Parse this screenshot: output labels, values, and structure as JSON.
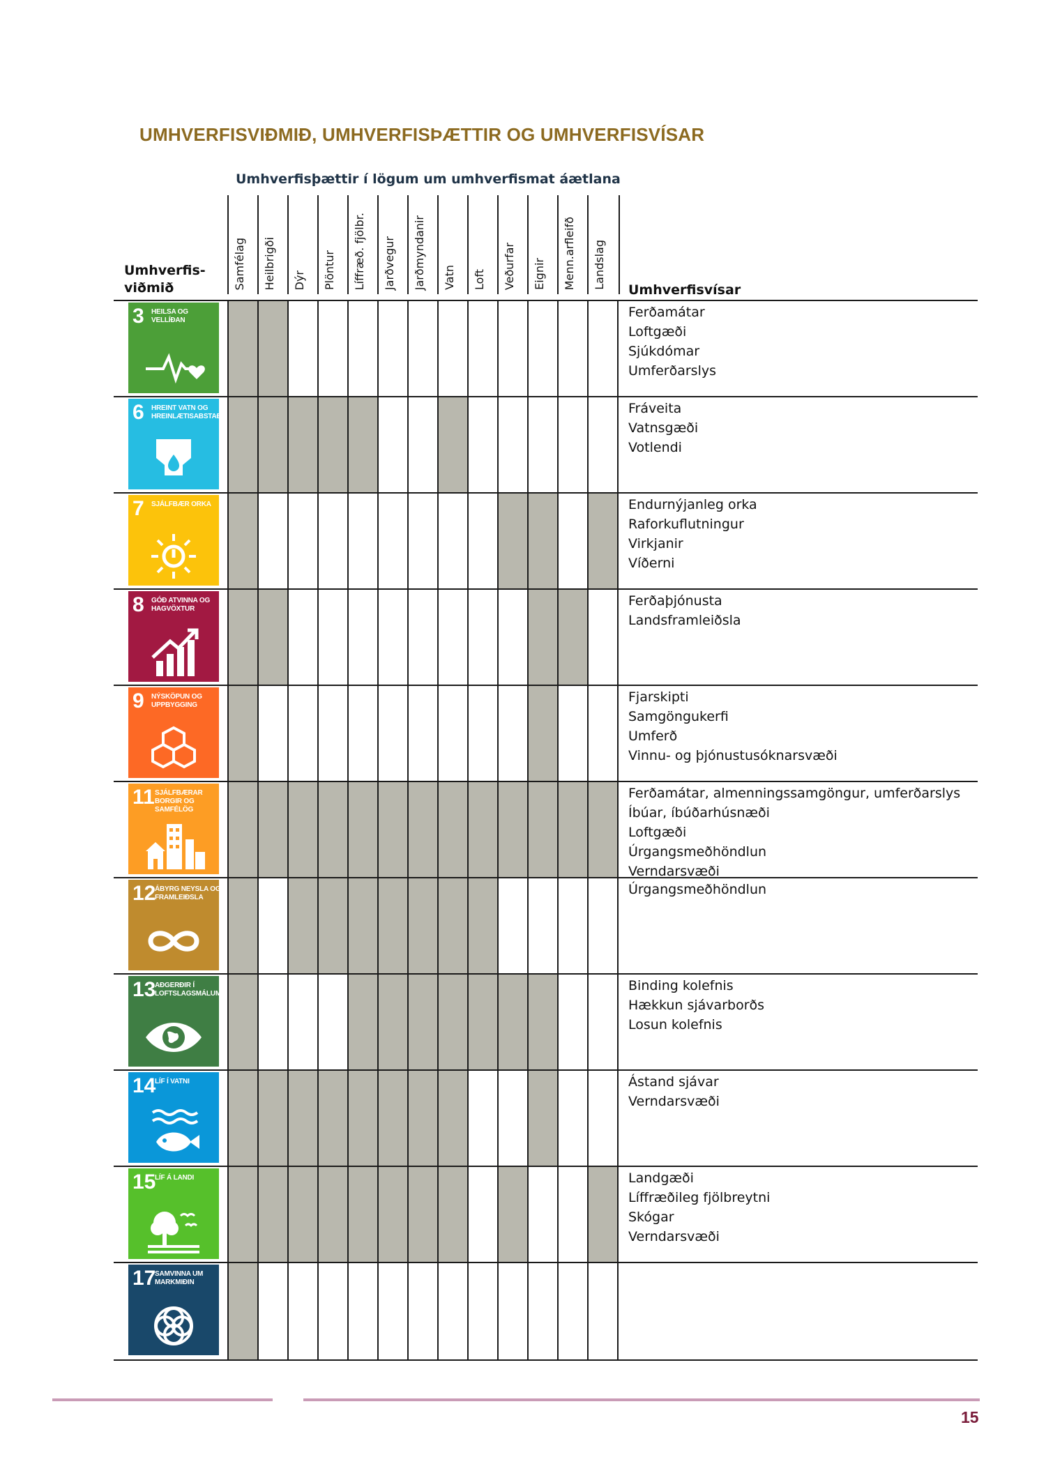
{
  "title": "UMHVERFISVIÐMIÐ, UMHVERFISÞÆTTIR OG UMHVERFISVÍSAR",
  "subtitle": "Umhverfisþættir í lögum um umhverfismat áætlana",
  "sdg_header": "Umhverfis-viðmið",
  "indicator_header": "Umhverfisvísar",
  "columns": [
    "Samfélag",
    "Heilbrigði",
    "Dýr",
    "Plöntur",
    "Líffræð. fjölbr.",
    "Jarðvegur",
    "Jarðmyndanir",
    "Vatn",
    "Loft",
    "Veðurfar",
    "Eignir",
    "Menn.arfleifð",
    "Landslag"
  ],
  "rows": [
    {
      "sdg_number": "3",
      "sdg_label": "HEILSA OG VELLÍÐAN",
      "icon": "heartbeat-icon",
      "color": "#4c9f38",
      "filled": [
        1,
        1,
        0,
        0,
        0,
        0,
        0,
        0,
        0,
        0,
        0,
        0,
        0
      ],
      "indicators": [
        "Ferðamátar",
        "Loftgæði",
        "Sjúkdómar",
        "Umferðarslys"
      ]
    },
    {
      "sdg_number": "6",
      "sdg_label": "HREINT VATN OG HREINLÆTISABSTAÐA",
      "icon": "water-drop-icon",
      "color": "#26bde2",
      "filled": [
        1,
        1,
        1,
        1,
        1,
        0,
        0,
        1,
        0,
        0,
        0,
        0,
        0
      ],
      "indicators": [
        "Fráveita",
        "Vatnsgæði",
        "Votlendi"
      ]
    },
    {
      "sdg_number": "7",
      "sdg_label": "SJÁLFBÆR ORKA",
      "icon": "sun-power-icon",
      "color": "#fcc30b",
      "filled": [
        1,
        0,
        0,
        0,
        0,
        0,
        0,
        0,
        0,
        1,
        1,
        0,
        1
      ],
      "indicators": [
        "Endurnýjanleg orka",
        "Raforkuflutningur",
        "Virkjanir",
        "Víðerni"
      ]
    },
    {
      "sdg_number": "8",
      "sdg_label": "GÓÐ ATVINNA OG HAGVÖXTUR",
      "icon": "growth-chart-icon",
      "color": "#a21942",
      "filled": [
        1,
        1,
        0,
        0,
        0,
        0,
        0,
        0,
        0,
        0,
        1,
        1,
        0
      ],
      "indicators": [
        "Ferðaþjónusta",
        "Landsframleiðsla"
      ]
    },
    {
      "sdg_number": "9",
      "sdg_label": "NÝSKÖPUN OG UPPBYGGING",
      "icon": "cubes-icon",
      "color": "#fd6925",
      "filled": [
        1,
        0,
        0,
        0,
        0,
        0,
        0,
        0,
        0,
        0,
        1,
        0,
        0
      ],
      "indicators": [
        "Fjarskipti",
        "Samgöngukerfi",
        "Umferð",
        "Vinnu- og þjónustusóknarsvæði"
      ]
    },
    {
      "sdg_number": "11",
      "sdg_label": "SJÁLFBÆRAR BORGIR OG SAMFÉLÖG",
      "icon": "city-buildings-icon",
      "color": "#fd9d24",
      "filled": [
        1,
        1,
        1,
        1,
        1,
        1,
        1,
        1,
        1,
        1,
        1,
        1,
        1
      ],
      "indicators": [
        "Ferðamátar, almenningssamgöngur, umferðarslys",
        "Íbúar, íbúðarhúsnæði",
        "Loftgæði",
        "Úrgangsmeðhöndlun",
        "Verndarsvæði"
      ]
    },
    {
      "sdg_number": "12",
      "sdg_label": "ÁBYRG NEYSLA OG FRAMLEIÐSLA",
      "icon": "infinity-icon",
      "color": "#bf8b2e",
      "filled": [
        1,
        0,
        1,
        1,
        1,
        1,
        1,
        1,
        1,
        0,
        0,
        0,
        0
      ],
      "indicators": [
        "Úrgangsmeðhöndlun"
      ]
    },
    {
      "sdg_number": "13",
      "sdg_label": "AÐGERÐIR Í LOFTSLAGSMÁLUM",
      "icon": "eye-globe-icon",
      "color": "#3f7e44",
      "filled": [
        1,
        0,
        0,
        0,
        1,
        1,
        1,
        1,
        1,
        1,
        1,
        0,
        0
      ],
      "indicators": [
        "Binding kolefnis",
        "Hækkun sjávarborðs",
        "Losun kolefnis"
      ]
    },
    {
      "sdg_number": "14",
      "sdg_label": "LÍF Í VATNI",
      "icon": "fish-icon",
      "color": "#0a97d9",
      "filled": [
        1,
        1,
        1,
        1,
        1,
        1,
        1,
        1,
        0,
        0,
        1,
        0,
        0
      ],
      "indicators": [
        "Ástand sjávar",
        "Verndarsvæði"
      ]
    },
    {
      "sdg_number": "15",
      "sdg_label": "LÍF Á LANDI",
      "icon": "tree-birds-icon",
      "color": "#56c02b",
      "filled": [
        1,
        1,
        1,
        1,
        1,
        1,
        1,
        1,
        0,
        1,
        0,
        0,
        1
      ],
      "indicators": [
        "Landgæði",
        "Líffræðileg fjölbreytni",
        "Skógar",
        "Verndarsvæði"
      ]
    },
    {
      "sdg_number": "17",
      "sdg_label": "SAMVINNA UM MARKMIÐIN",
      "icon": "rings-flower-icon",
      "color": "#19486a",
      "filled": [
        1,
        0,
        0,
        0,
        0,
        0,
        0,
        0,
        0,
        0,
        0,
        0,
        0
      ],
      "indicators": []
    }
  ],
  "page_number": "15"
}
